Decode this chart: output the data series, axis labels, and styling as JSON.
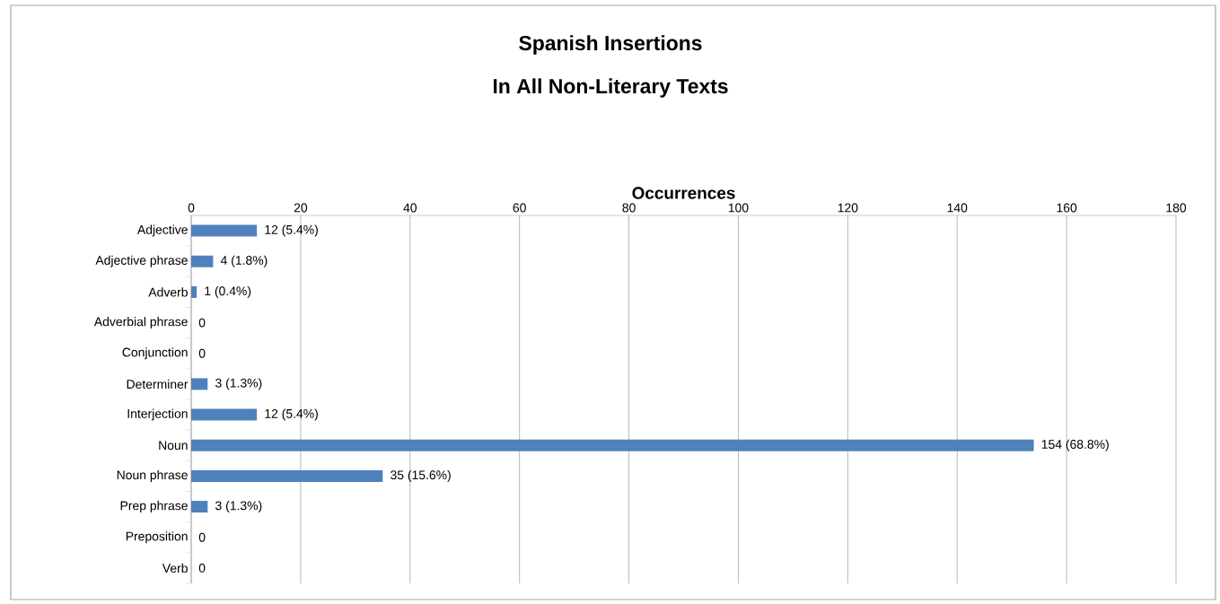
{
  "chart_data": {
    "type": "bar",
    "orientation": "horizontal",
    "title": "Spanish Insertions",
    "subtitle": "In All Non-Literary Texts",
    "xlabel": "Occurrences",
    "categories": [
      "Adjective",
      "Adjective phrase",
      "Adverb",
      "Adverbial phrase",
      "Conjunction",
      "Determiner",
      "Interjection",
      "Noun",
      "Noun phrase",
      "Prep phrase",
      "Preposition",
      "Verb"
    ],
    "values": [
      12,
      4,
      1,
      0,
      0,
      3,
      12,
      154,
      35,
      3,
      0,
      0
    ],
    "value_labels": [
      "12 (5.4%)",
      "4 (1.8%)",
      "1 (0.4%)",
      "0",
      "0",
      "3 (1.3%)",
      "12 (5.4%)",
      "154 (68.8%)",
      "35 (15.6%)",
      "3 (1.3%)",
      "0",
      "0"
    ],
    "color": "#4f81bd",
    "xlim": [
      0,
      180
    ],
    "xticks": [
      0,
      20,
      40,
      60,
      80,
      100,
      120,
      140,
      160,
      180
    ],
    "grid": "x"
  }
}
